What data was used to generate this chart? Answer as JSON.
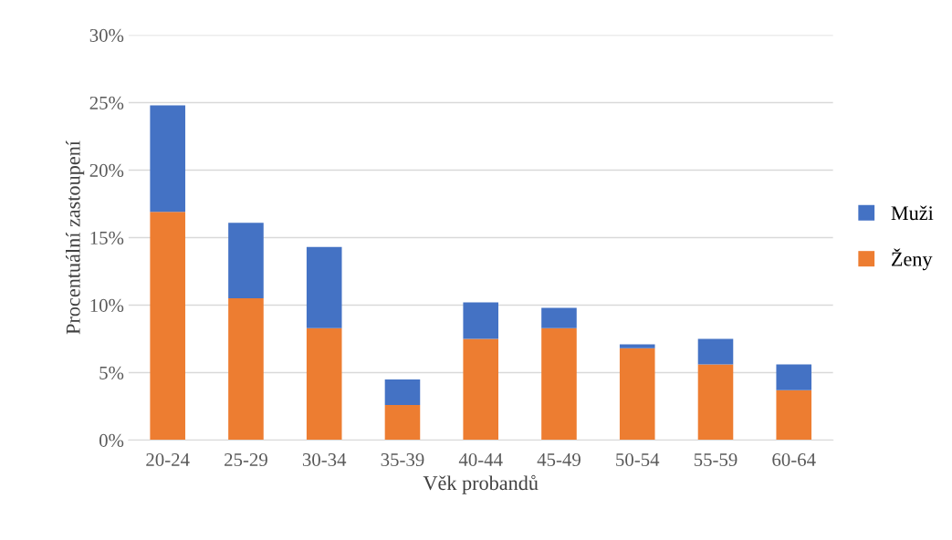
{
  "chart_data": {
    "type": "bar",
    "stacked": true,
    "xlabel": "Věk probandů",
    "ylabel": "Procentuální zastoupení",
    "categories": [
      "20-24",
      "25-29",
      "30-34",
      "35-39",
      "40-44",
      "45-49",
      "50-54",
      "55-59",
      "60-64"
    ],
    "series": [
      {
        "name": "Ženy",
        "color": "#ed7d31",
        "values": [
          16.9,
          10.5,
          8.3,
          2.6,
          7.5,
          8.3,
          6.8,
          5.6,
          3.7
        ]
      },
      {
        "name": "Muži",
        "color": "#4472c4",
        "values": [
          7.9,
          5.6,
          6.0,
          1.9,
          2.7,
          1.5,
          0.3,
          1.9,
          1.9
        ]
      }
    ],
    "ylim": [
      0,
      30
    ],
    "yticks": [
      {
        "value": 0,
        "label": "0%"
      },
      {
        "value": 5,
        "label": "5%"
      },
      {
        "value": 10,
        "label": "10%"
      },
      {
        "value": 15,
        "label": "15%"
      },
      {
        "value": 20,
        "label": "20%"
      },
      {
        "value": 25,
        "label": "25%"
      },
      {
        "value": 30,
        "label": "30%"
      }
    ],
    "grid": "y",
    "legend": "right"
  }
}
